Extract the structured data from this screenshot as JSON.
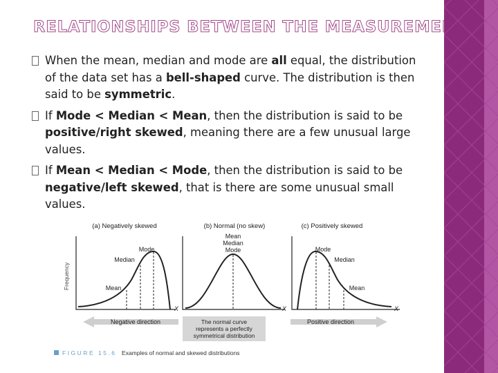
{
  "slide": {
    "title": "RELATIONSHIPS BETWEEN THE MEASUREMENTS",
    "bullets": [
      {
        "segments": [
          {
            "text": "When the mean, median and mode are ",
            "bold": false
          },
          {
            "text": "all",
            "bold": true
          },
          {
            "text": " equal, the distribution of the data set has a ",
            "bold": false
          },
          {
            "text": "bell-shaped",
            "bold": true
          },
          {
            "text": " curve. The distribution is then said to be ",
            "bold": false
          },
          {
            "text": "symmetric",
            "bold": true
          },
          {
            "text": ".",
            "bold": false
          }
        ]
      },
      {
        "segments": [
          {
            "text": "If ",
            "bold": false
          },
          {
            "text": "Mode < Median < Mean",
            "bold": true
          },
          {
            "text": ", then the distribution is said to be ",
            "bold": false
          },
          {
            "text": "positive/right skewed",
            "bold": true
          },
          {
            "text": ", meaning there are a few unusual large values.",
            "bold": false
          }
        ]
      },
      {
        "segments": [
          {
            "text": "If ",
            "bold": false
          },
          {
            "text": "Mean < Median < Mode",
            "bold": true
          },
          {
            "text": ", then the distribution is said to be ",
            "bold": false
          },
          {
            "text": "negative/left skewed",
            "bold": true
          },
          {
            "text": ", that is there are some unusual small values.",
            "bold": false
          }
        ]
      }
    ]
  },
  "figure": {
    "y_axis_label": "Frequency",
    "x_label": "X",
    "panels": [
      {
        "title": "(a) Negatively skewed",
        "labels": [
          "Mode",
          "Median",
          "Mean"
        ]
      },
      {
        "title": "(b) Normal (no skew)",
        "labels": [
          "Mean",
          "Median",
          "Mode"
        ]
      },
      {
        "title": "(c) Positively skewed",
        "labels": [
          "Mode",
          "Median",
          "Mean"
        ]
      }
    ],
    "negative_direction": "Negative direction",
    "positive_direction": "Positive direction",
    "center_note": [
      "The normal curve",
      "represents a perfectly",
      "symmetrical distribution"
    ],
    "caption_label": "FIGURE 15.6",
    "caption_text": "Examples of normal and skewed distributions"
  },
  "colors": {
    "title_outline": "#a24a8a",
    "band": "#8b2a7b",
    "band_light": "#b256a4",
    "arrow": "#cccccc",
    "caption_label": "#6aa0c8"
  }
}
